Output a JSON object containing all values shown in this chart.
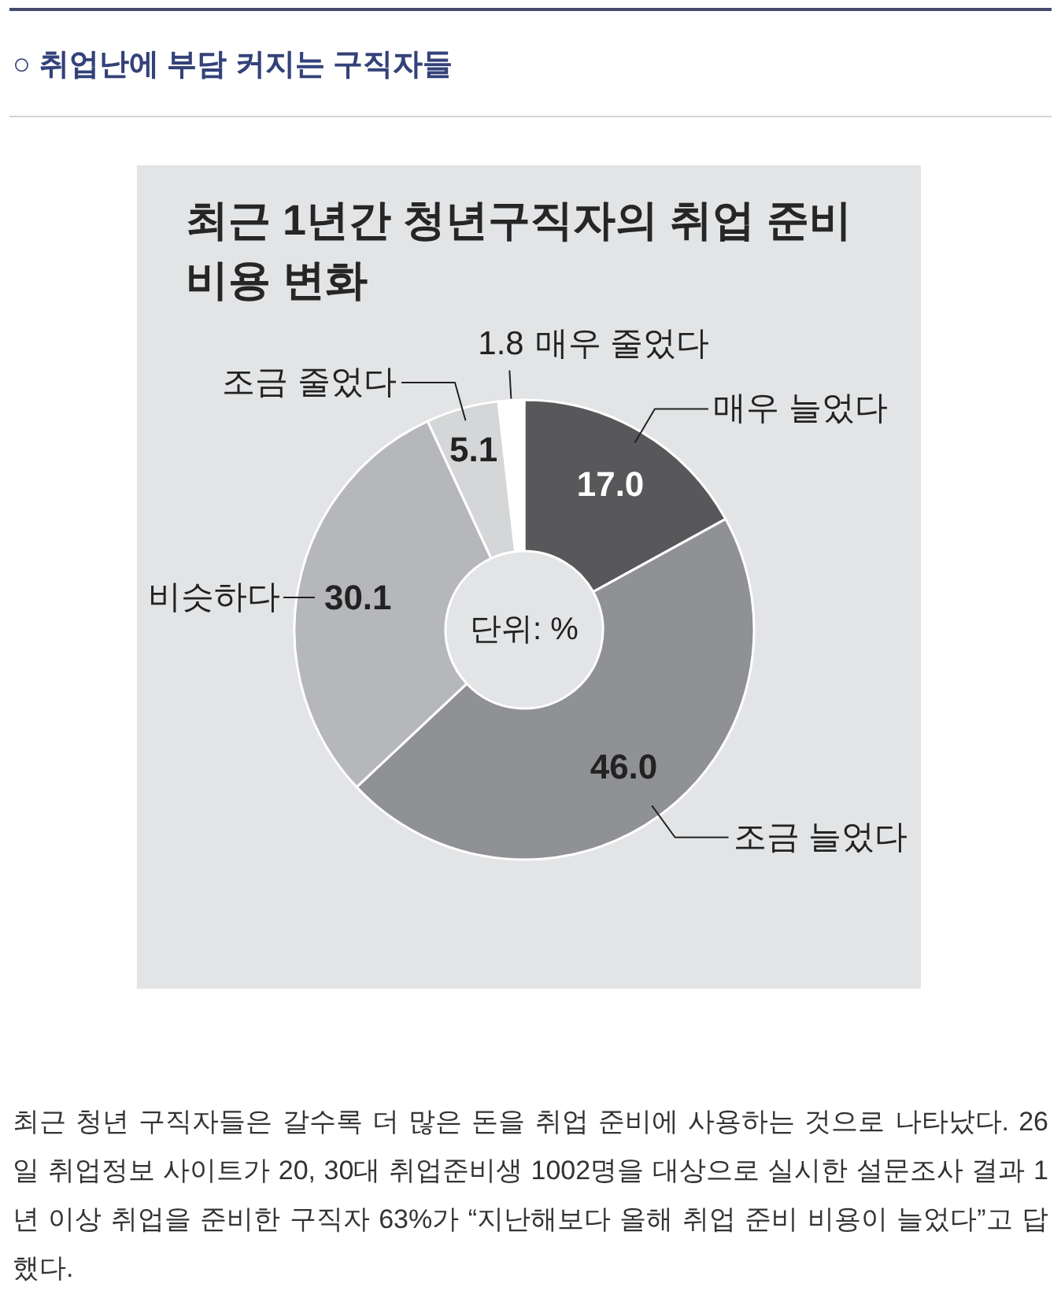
{
  "chart_data": {
    "type": "donut",
    "title": "최근 1년간 청년구직자의 취업 준비 비용 변화",
    "categories": [
      "매우 늘었다",
      "조금 늘었다",
      "비슷하다",
      "조금 줄었다",
      "매우 줄었다"
    ],
    "values": [
      17.0,
      46.0,
      30.1,
      5.1,
      1.8
    ],
    "value_labels": [
      "17.0",
      "46.0",
      "30.1",
      "5.1",
      "1.8"
    ],
    "colors": [
      "#58585b",
      "#909194",
      "#b6b7ba",
      "#d5d6d8",
      "#ffffff"
    ],
    "annotations": [
      "○ 취업난에 부담 커지는 구직자들",
      "단위: %",
      "최근 청년 구직자들은 갈수록 더 많은 돈을 취업 준비에 사용하는 것으로 나타났다. 26일 취업정보 사이트가 20, 30대 취업준비생 1002명을 대상으로 실시한 설문조사 결과 1년 이상 취업을 준비한 구직자 63%가 “지난해보다 올해 취업 준비 비용이 늘었다”고 답했다."
    ]
  }
}
